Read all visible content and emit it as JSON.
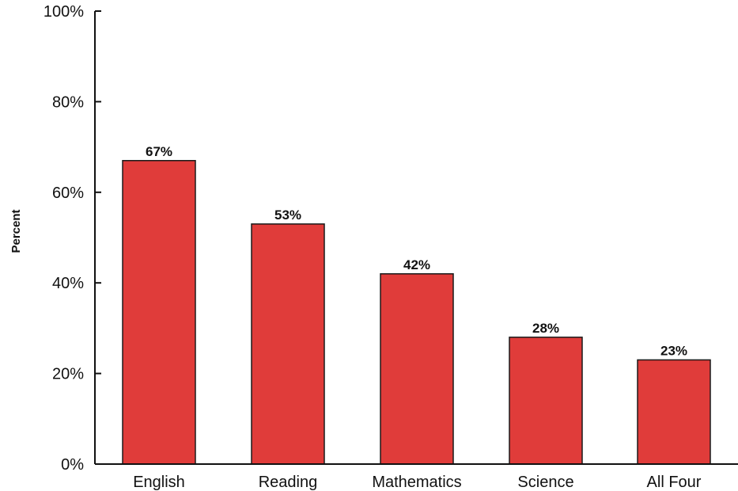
{
  "chart_data": {
    "type": "bar",
    "title": "",
    "xlabel": "",
    "ylabel": "Percent",
    "categories": [
      "English",
      "Reading",
      "Mathematics",
      "Science",
      "All Four"
    ],
    "values": [
      67,
      53,
      42,
      28,
      23
    ],
    "value_labels": [
      "67%",
      "53%",
      "42%",
      "28%",
      "23%"
    ],
    "ylim": [
      0,
      100
    ],
    "yticks": [
      0,
      20,
      40,
      60,
      80,
      100
    ],
    "ytick_labels": [
      "0%",
      "20%",
      "40%",
      "60%",
      "80%",
      "100%"
    ],
    "grid": false,
    "legend": "none",
    "bar_color": "#e03c3a",
    "bar_edge_color": "#1a1a1a"
  }
}
